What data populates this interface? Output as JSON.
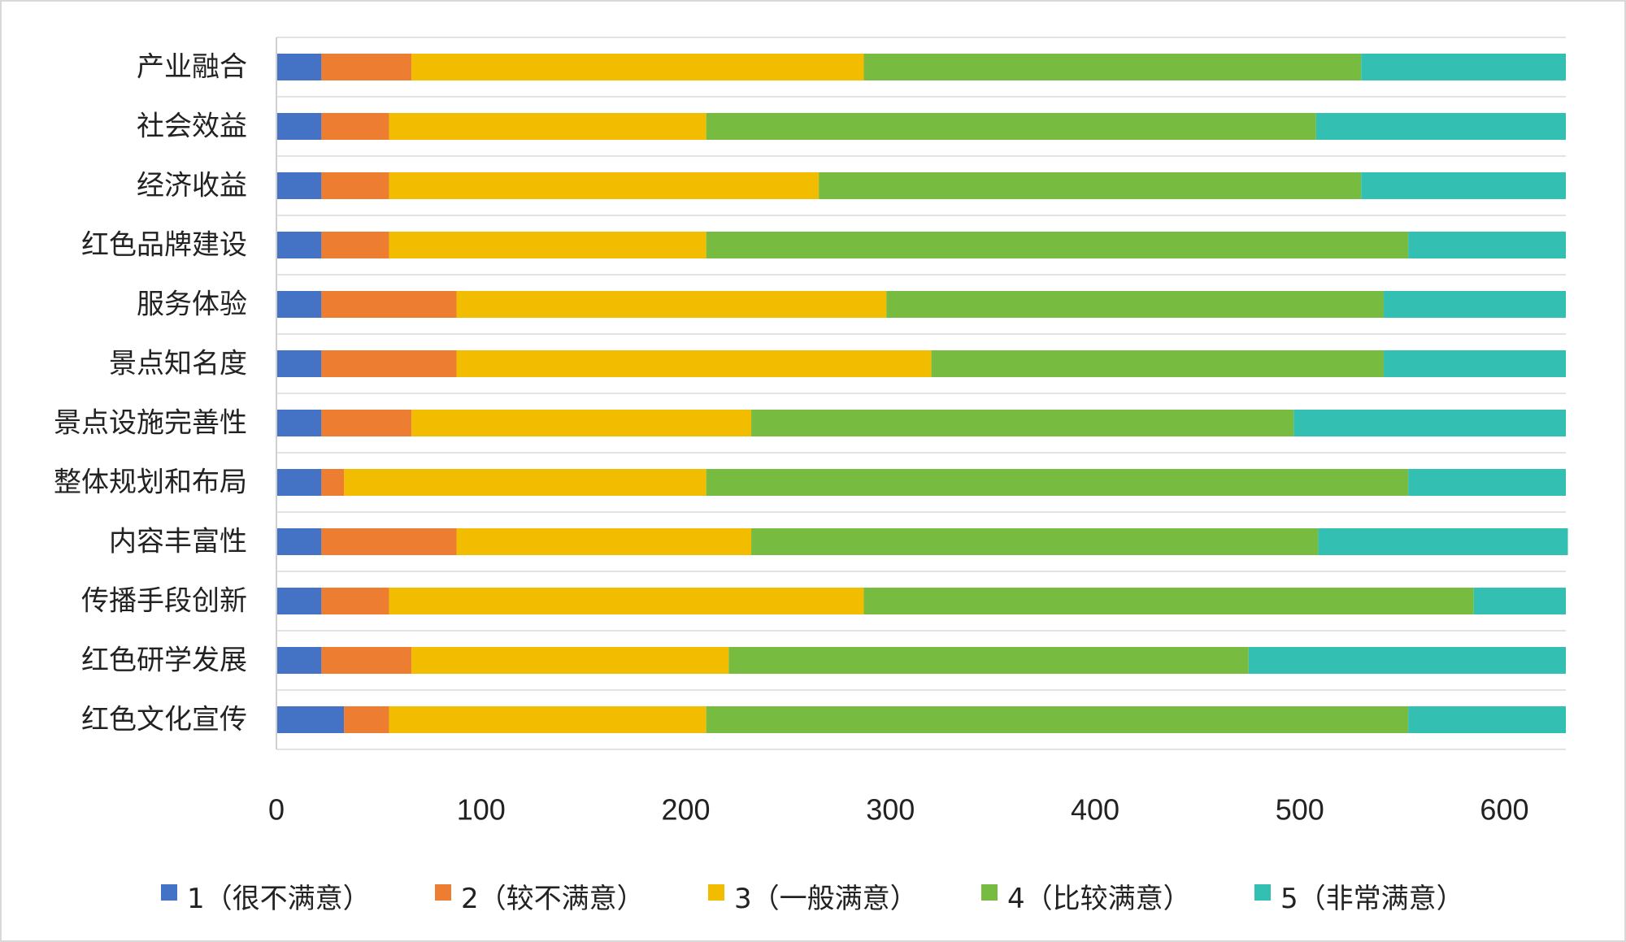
{
  "chart_data": {
    "type": "bar",
    "orientation": "horizontal",
    "stacked": true,
    "title": "",
    "xlabel": "",
    "ylabel": "",
    "xlim": [
      0,
      630
    ],
    "xticks": [
      0,
      100,
      200,
      300,
      400,
      500,
      600
    ],
    "grid": "horizontal-category-lines",
    "legend_position": "bottom",
    "categories": [
      "产业融合",
      "社会效益",
      "经济收益",
      "红色品牌建设",
      "服务体验",
      "景点知名度",
      "景点设施完善性",
      "整体规划和布局",
      "内容丰富性",
      "传播手段创新",
      "红色研学发展",
      "红色文化宣传"
    ],
    "series": [
      {
        "name": "1（很不满意）",
        "color": "#4472C4",
        "values": [
          22,
          22,
          22,
          22,
          22,
          22,
          22,
          22,
          22,
          22,
          22,
          33
        ]
      },
      {
        "name": "2（较不满意）",
        "color": "#ED7D31",
        "values": [
          44,
          33,
          33,
          33,
          66,
          66,
          44,
          11,
          66,
          33,
          44,
          22
        ]
      },
      {
        "name": "3（一般满意）",
        "color": "#F2BC00",
        "values": [
          221,
          155,
          210,
          155,
          210,
          232,
          166,
          177,
          144,
          232,
          155,
          155
        ]
      },
      {
        "name": "4（比较满意）",
        "color": "#77BC41",
        "values": [
          243,
          298,
          265,
          343,
          243,
          221,
          265,
          343,
          277,
          298,
          254,
          343
        ]
      },
      {
        "name": "5（非常满意）",
        "color": "#33BFB2",
        "values": [
          100,
          122,
          100,
          77,
          89,
          89,
          133,
          77,
          122,
          45,
          155,
          77
        ]
      }
    ]
  }
}
